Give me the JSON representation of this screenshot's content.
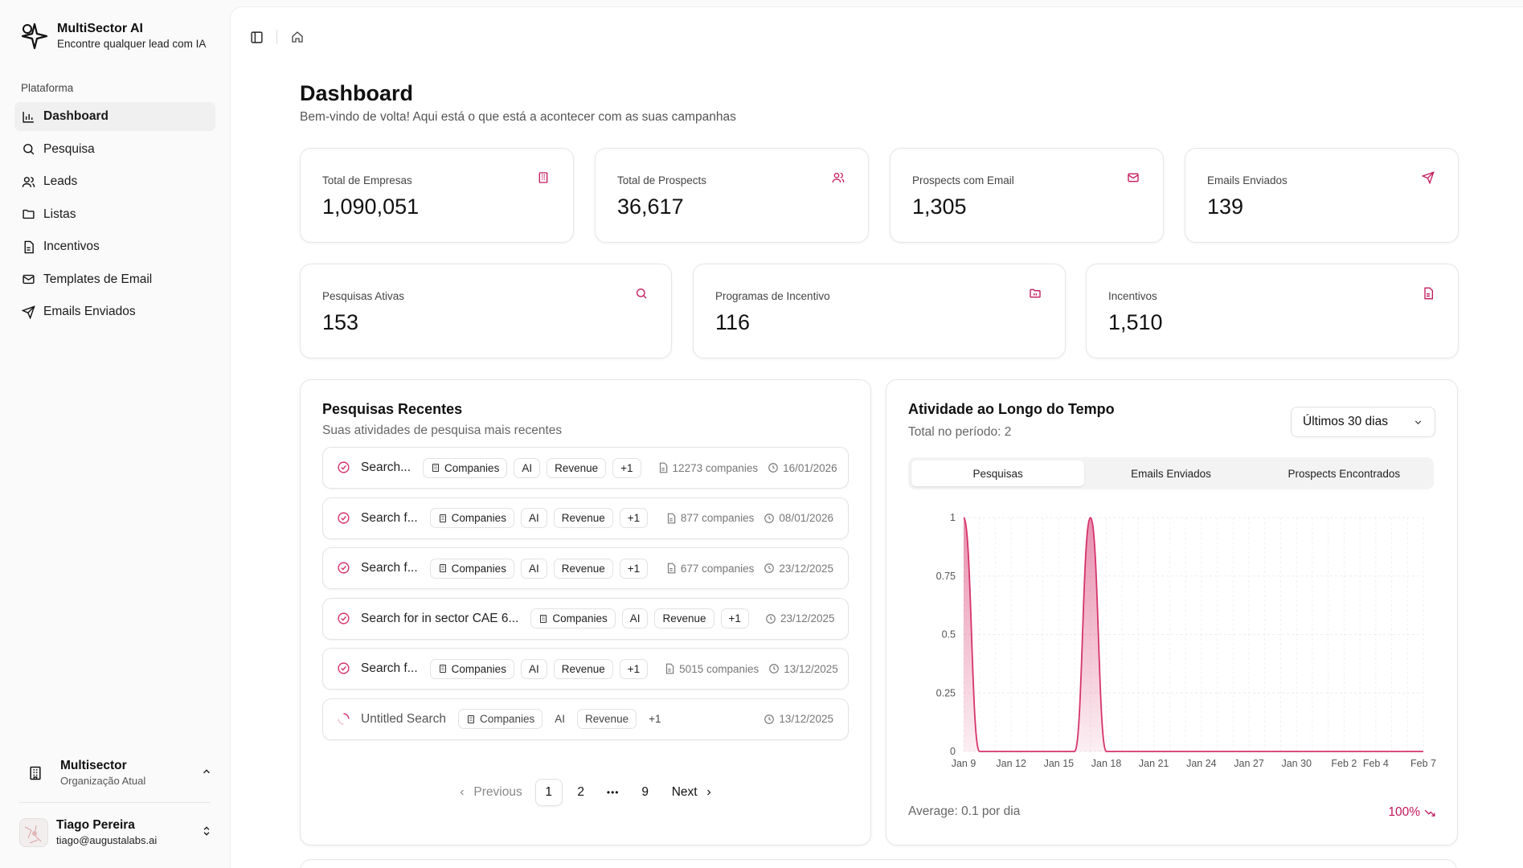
{
  "brand": {
    "name": "MultiSector AI",
    "subtitle": "Encontre qualquer lead com IA"
  },
  "sidebar": {
    "section_label": "Plataforma",
    "items": [
      {
        "label": "Dashboard",
        "icon": "bar-chart-icon",
        "active": true
      },
      {
        "label": "Pesquisa",
        "icon": "search-icon"
      },
      {
        "label": "Leads",
        "icon": "users-icon"
      },
      {
        "label": "Listas",
        "icon": "folder-icon"
      },
      {
        "label": "Incentivos",
        "icon": "file-icon"
      },
      {
        "label": "Templates de Email",
        "icon": "mail-icon"
      },
      {
        "label": "Emails Enviados",
        "icon": "send-icon"
      }
    ],
    "org": {
      "name": "Multisector",
      "subtitle": "Organização Atual"
    },
    "user": {
      "name": "Tiago Pereira",
      "email": "tiago@augustalabs.ai"
    }
  },
  "header": {
    "title": "Dashboard",
    "subtitle": "Bem-vindo de volta! Aqui está o que está a acontecer com as suas campanhas"
  },
  "stats_row1": [
    {
      "label": "Total de Empresas",
      "value": "1,090,051",
      "icon": "building-icon"
    },
    {
      "label": "Total de Prospects",
      "value": "36,617",
      "icon": "users-icon"
    },
    {
      "label": "Prospects com Email",
      "value": "1,305",
      "icon": "mail-icon"
    },
    {
      "label": "Emails Enviados",
      "value": "139",
      "icon": "send-icon"
    }
  ],
  "stats_row2": [
    {
      "label": "Pesquisas Ativas",
      "value": "153",
      "icon": "search-icon"
    },
    {
      "label": "Programas de Incentivo",
      "value": "116",
      "icon": "folder-icon"
    },
    {
      "label": "Incentivos",
      "value": "1,510",
      "icon": "file-icon"
    }
  ],
  "recent": {
    "title": "Pesquisas Recentes",
    "subtitle": "Suas atividades de pesquisa mais recentes",
    "rows": [
      {
        "title": "Search...",
        "tags": [
          "Companies",
          "AI",
          "Revenue",
          "+1"
        ],
        "count": "12273 companies",
        "date": "16/01/2026",
        "status": "done"
      },
      {
        "title": "Search f...",
        "tags": [
          "Companies",
          "AI",
          "Revenue",
          "+1"
        ],
        "count": "877 companies",
        "date": "08/01/2026",
        "status": "done"
      },
      {
        "title": "Search f...",
        "tags": [
          "Companies",
          "AI",
          "Revenue",
          "+1"
        ],
        "count": "677 companies",
        "date": "23/12/2025",
        "status": "done"
      },
      {
        "title": "Search for in sector CAE 6...",
        "tags": [
          "Companies",
          "AI",
          "Revenue",
          "+1"
        ],
        "count": "",
        "date": "23/12/2025",
        "status": "done"
      },
      {
        "title": "Search f...",
        "tags": [
          "Companies",
          "AI",
          "Revenue",
          "+1"
        ],
        "count": "5015 companies",
        "date": "13/12/2025",
        "status": "done"
      },
      {
        "title": "Untitled Search",
        "tags": [
          "Companies",
          "AI",
          "Revenue",
          "+1"
        ],
        "count": "",
        "date": "13/12/2025",
        "status": "pending"
      }
    ],
    "pagination": {
      "previous": "Previous",
      "pages": [
        "1",
        "2",
        "9"
      ],
      "ellipsis": "•••",
      "next": "Next",
      "current": "1"
    }
  },
  "activity": {
    "title": "Atividade ao Longo do Tempo",
    "total": "Total no período: 2",
    "range": "Últimos 30 dias",
    "tabs": [
      "Pesquisas",
      "Emails Enviados",
      "Prospects Encontrados"
    ],
    "average": "Average: 0.1 por dia",
    "trend": "100%"
  },
  "chart_data": {
    "type": "area",
    "x": [
      "Jan 9",
      "Jan 10",
      "Jan 11",
      "Jan 12",
      "Jan 13",
      "Jan 14",
      "Jan 15",
      "Jan 16",
      "Jan 17",
      "Jan 18",
      "Jan 19",
      "Jan 20",
      "Jan 21",
      "Jan 22",
      "Jan 23",
      "Jan 24",
      "Jan 25",
      "Jan 26",
      "Jan 27",
      "Jan 28",
      "Jan 29",
      "Jan 30",
      "Jan 31",
      "Feb 1",
      "Feb 2",
      "Feb 3",
      "Feb 4",
      "Feb 5",
      "Feb 6",
      "Feb 7"
    ],
    "series": [
      {
        "values": [
          1,
          0,
          0,
          0,
          0,
          0,
          0,
          0,
          1,
          0,
          0,
          0,
          0,
          0,
          0,
          0,
          0,
          0,
          0,
          0,
          0,
          0,
          0,
          0,
          0,
          0,
          0,
          0,
          0,
          0
        ]
      }
    ],
    "x_tick_labels": [
      "Jan 9",
      "Jan 12",
      "Jan 15",
      "Jan 18",
      "Jan 21",
      "Jan 24",
      "Jan 27",
      "Jan 30",
      "Feb 2",
      "Feb 4",
      "Feb 7"
    ],
    "y_ticks": [
      "0",
      "0.25",
      "0.5",
      "0.75",
      "1"
    ],
    "ylim": [
      0,
      1
    ],
    "grid": true,
    "color": "#d6336c"
  }
}
